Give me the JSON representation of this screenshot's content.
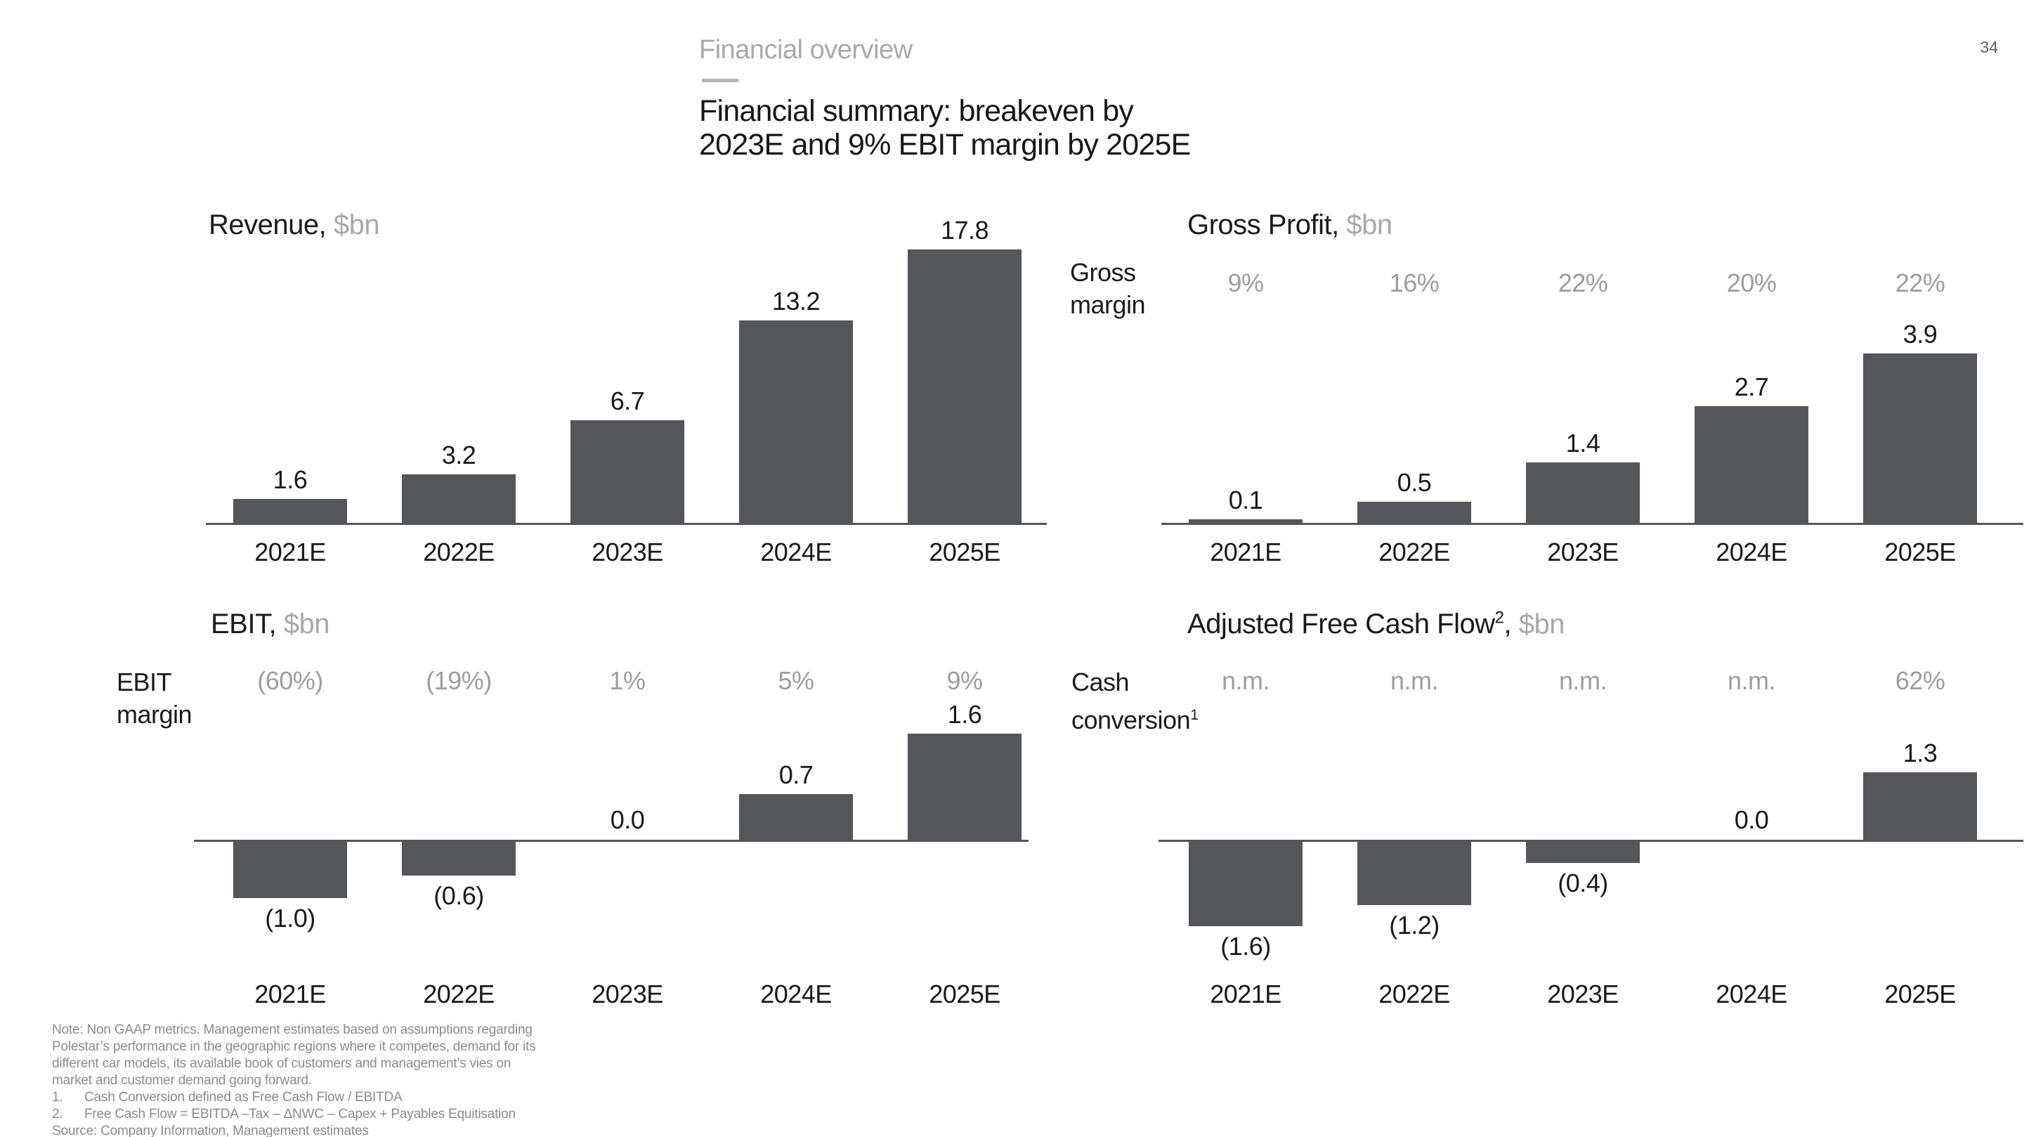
{
  "page_number": "34",
  "header": {
    "section": "Financial overview",
    "title_lines": [
      "Financial summary: breakeven by",
      "2023E and 9% EBIT margin by 2025E"
    ]
  },
  "chart_data": [
    {
      "type": "bar",
      "title": "Revenue",
      "title_sup": "",
      "unit": "$bn",
      "categories": [
        "2021E",
        "2022E",
        "2023E",
        "2024E",
        "2025E"
      ],
      "values": [
        1.6,
        3.2,
        6.7,
        13.2,
        17.8
      ],
      "value_labels": [
        "1.6",
        "3.2",
        "6.7",
        "13.2",
        "17.8"
      ],
      "ylim": [
        0,
        19.5
      ],
      "grid": false,
      "legend": "none"
    },
    {
      "type": "bar",
      "title": "Gross Profit",
      "title_sup": "",
      "unit": "$bn",
      "margin_label": "Gross margin",
      "margin_label_lines": [
        "Gross",
        "margin"
      ],
      "margin_label_sup": "",
      "margin_values": [
        "9%",
        "16%",
        "22%",
        "20%",
        "22%"
      ],
      "categories": [
        "2021E",
        "2022E",
        "2023E",
        "2024E",
        "2025E"
      ],
      "values": [
        0.1,
        0.5,
        1.4,
        2.7,
        3.9
      ],
      "value_labels": [
        "0.1",
        "0.5",
        "1.4",
        "2.7",
        "3.9"
      ],
      "ylim": [
        0,
        4.3
      ],
      "grid": false,
      "legend": "none"
    },
    {
      "type": "bar",
      "title": "EBIT",
      "title_sup": "",
      "unit": "$bn",
      "margin_label": "EBIT margin",
      "margin_label_lines": [
        "EBIT",
        "margin"
      ],
      "margin_label_sup": "",
      "margin_values": [
        "(60%)",
        "(19%)",
        "1%",
        "5%",
        "9%"
      ],
      "categories": [
        "2021E",
        "2022E",
        "2023E",
        "2024E",
        "2025E"
      ],
      "values": [
        -1.0,
        -0.6,
        0.0,
        0.7,
        1.6
      ],
      "value_labels": [
        "(1.0)",
        "(0.6)",
        "0.0",
        "0.7",
        "1.6"
      ],
      "ylim": [
        -1.35,
        1.75
      ],
      "grid": false,
      "legend": "none"
    },
    {
      "type": "bar",
      "title": "Adjusted Free Cash Flow",
      "title_sup": "2",
      "unit": "$bn",
      "margin_label": "Cash conversion",
      "margin_label_lines": [
        "Cash",
        "conversion"
      ],
      "margin_label_sup": "1",
      "margin_values": [
        "n.m.",
        "n.m.",
        "n.m.",
        "n.m.",
        "62%"
      ],
      "categories": [
        "2021E",
        "2022E",
        "2023E",
        "2024E",
        "2025E"
      ],
      "values": [
        -1.6,
        -1.2,
        -0.4,
        0.0,
        1.3
      ],
      "value_labels": [
        "(1.6)",
        "(1.2)",
        "(0.4)",
        "0.0",
        "1.3"
      ],
      "ylim": [
        -1.85,
        1.45
      ],
      "grid": false,
      "legend": "none"
    }
  ],
  "footer": {
    "note": "Note: Non GAAP metrics. Management estimates based on assumptions regarding Polestar’s performance in the geographic regions where it competes, demand for its different car models, its available book of customers and management’s vies on market and customer demand going forward.",
    "footnotes": [
      {
        "num": "1.",
        "text": "Cash Conversion defined as Free Cash Flow / EBITDA"
      },
      {
        "num": "2.",
        "text": "Free Cash Flow = EBITDA –Tax – ΔNWC – Capex + Payables Equitisation"
      }
    ],
    "source": "Source: Company Information, Management estimates"
  }
}
